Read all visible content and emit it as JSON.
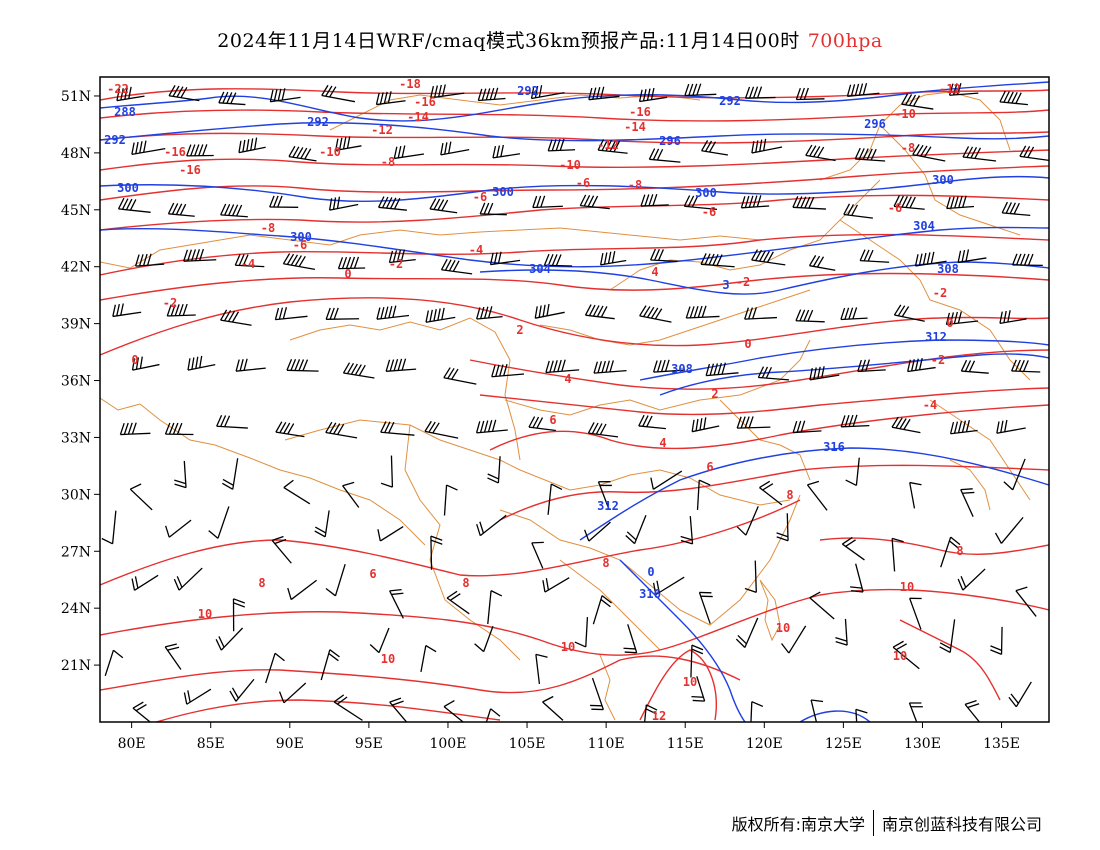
{
  "header": {
    "title": "2024年11月14日WRF/cmaq模式36km预报产品:11月14日00时",
    "level": "700hpa"
  },
  "map": {
    "lon_range": [
      78,
      138
    ],
    "lat_range": [
      18,
      52
    ],
    "x_ticks": [
      "80E",
      "85E",
      "90E",
      "95E",
      "100E",
      "105E",
      "110E",
      "115E",
      "120E",
      "125E",
      "130E",
      "135E"
    ],
    "y_ticks": [
      "51N",
      "48N",
      "45N",
      "42N",
      "39N",
      "36N",
      "33N",
      "30N",
      "27N",
      "24N",
      "21N"
    ],
    "colors": {
      "temperature": "#e53030",
      "height": "#2040e0",
      "border": "#e09040",
      "wind": "#000000"
    }
  },
  "contour_labels": {
    "temperature": [
      "-22",
      "-18",
      "-16",
      "-14",
      "-12",
      "-10",
      "-8",
      "-6",
      "-4",
      "-2",
      "0",
      "2",
      "4",
      "6",
      "8",
      "10",
      "12"
    ],
    "height": [
      "288",
      "292",
      "296",
      "300",
      "304",
      "308",
      "312",
      "316"
    ]
  },
  "footer": {
    "copyright": "版权所有:南京大学",
    "company": "南京创蓝科技有限公司"
  }
}
